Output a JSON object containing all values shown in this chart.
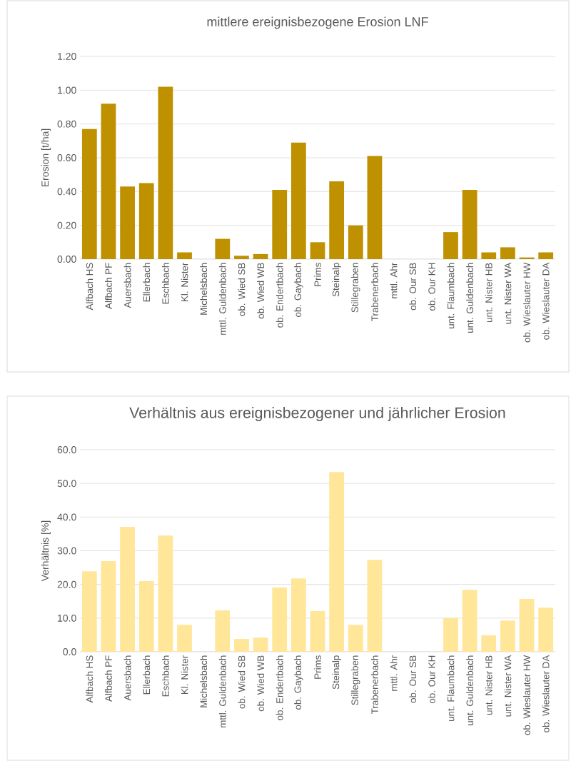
{
  "chart_data": [
    {
      "type": "bar",
      "title": "mittlere ereignisbezogene Erosion LNF",
      "ylabel": "Erosion [t/ha]",
      "categories": [
        "Alfbach HS",
        "Alfbach PF",
        "Auersbach",
        "Ellerbach",
        "Eschbach",
        "Kl. Nister",
        "Michelsbach",
        "mttl. Guldenbach",
        "ob. Wied SB",
        "ob. Wied WB",
        "ob. Endertbach",
        "ob. Gaybach",
        "Prims",
        "Steinalp",
        "Stillegraben",
        "Trabenerbach",
        "mttl. Ahr",
        "ob. Our SB",
        "ob. Our KH",
        "unt. Flaumbach",
        "unt. Guldenbach",
        "unt. Nister HB",
        "unt. Nister WA",
        "ob. Wieslauter HW",
        "ob. Wieslauter DA"
      ],
      "values": [
        0.77,
        0.92,
        0.43,
        0.45,
        1.02,
        0.04,
        0,
        0.12,
        0.02,
        0.03,
        0.41,
        0.69,
        0.1,
        0.46,
        0.2,
        0.61,
        0,
        0,
        0,
        0.16,
        0.41,
        0.04,
        0.07,
        0.01,
        0.04
      ],
      "color": "#bf9000",
      "ylim": [
        0,
        1.2
      ],
      "yticks": [
        {
          "value": 0,
          "label": "0.00"
        },
        {
          "value": 0.2,
          "label": "0.20"
        },
        {
          "value": 0.4,
          "label": "0.40"
        },
        {
          "value": 0.6,
          "label": "0.60"
        },
        {
          "value": 0.8,
          "label": "0.80"
        },
        {
          "value": 1.0,
          "label": "1.00"
        },
        {
          "value": 1.2,
          "label": "1.20"
        }
      ],
      "grid": "y"
    },
    {
      "type": "bar",
      "title": "Verhältnis aus ereignisbezogener und jährlicher Erosion",
      "ylabel": "Verhältnis [%]",
      "categories": [
        "Alfbach HS",
        "Alfbach PF",
        "Auersbach",
        "Ellerbach",
        "Eschbach",
        "Kl. Nister",
        "Michelsbach",
        "mttl. Guldenbach",
        "ob. Wied SB",
        "ob. Wied WB",
        "ob. Endertbach",
        "ob. Gaybach",
        "Prims",
        "Steinalp",
        "Stillegraben",
        "Trabenerbach",
        "mttl. Ahr",
        "ob. Our SB",
        "ob. Our KH",
        "unt. Flaumbach",
        "unt. Guldenbach",
        "unt. Nister HB",
        "unt. Nister WA",
        "ob. Wieslauter HW",
        "ob. Wieslauter DA"
      ],
      "values": [
        23.9,
        26.9,
        37.1,
        21.0,
        34.5,
        8.0,
        0,
        12.3,
        3.8,
        4.2,
        19.1,
        21.8,
        12.1,
        53.4,
        8.0,
        27.3,
        0,
        0,
        0,
        10.0,
        18.4,
        4.9,
        9.3,
        15.7,
        13.1
      ],
      "color": "#ffe699",
      "ylim": [
        0,
        60
      ],
      "yticks": [
        {
          "value": 0,
          "label": "0.0"
        },
        {
          "value": 10,
          "label": "10.0"
        },
        {
          "value": 20,
          "label": "20.0"
        },
        {
          "value": 30,
          "label": "30.0"
        },
        {
          "value": 40,
          "label": "40.0"
        },
        {
          "value": 50,
          "label": "50.0"
        },
        {
          "value": 60,
          "label": "60.0"
        }
      ],
      "grid": "y"
    }
  ]
}
